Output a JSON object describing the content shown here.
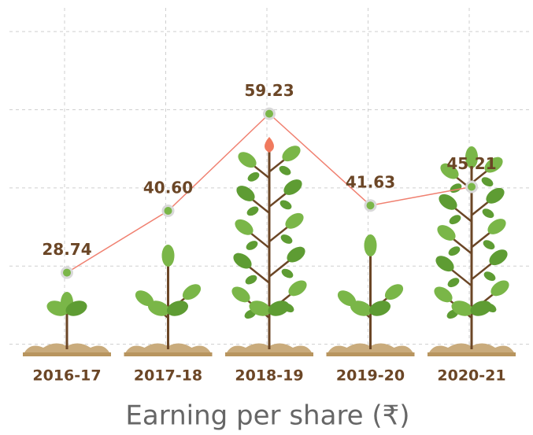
{
  "chart_data": {
    "type": "line",
    "title": "Earning per share (₹)",
    "categories": [
      "2016-17",
      "2017-18",
      "2018-19",
      "2019-20",
      "2020-21"
    ],
    "values": [
      28.74,
      40.6,
      59.23,
      41.63,
      45.21
    ],
    "value_labels": [
      "28.74",
      "40.60",
      "59.23",
      "41.63",
      "45.21"
    ],
    "color": "#f08070",
    "ylim": [
      0,
      80
    ],
    "yticks": [
      15,
      30,
      45,
      60,
      75
    ],
    "grid": true
  }
}
